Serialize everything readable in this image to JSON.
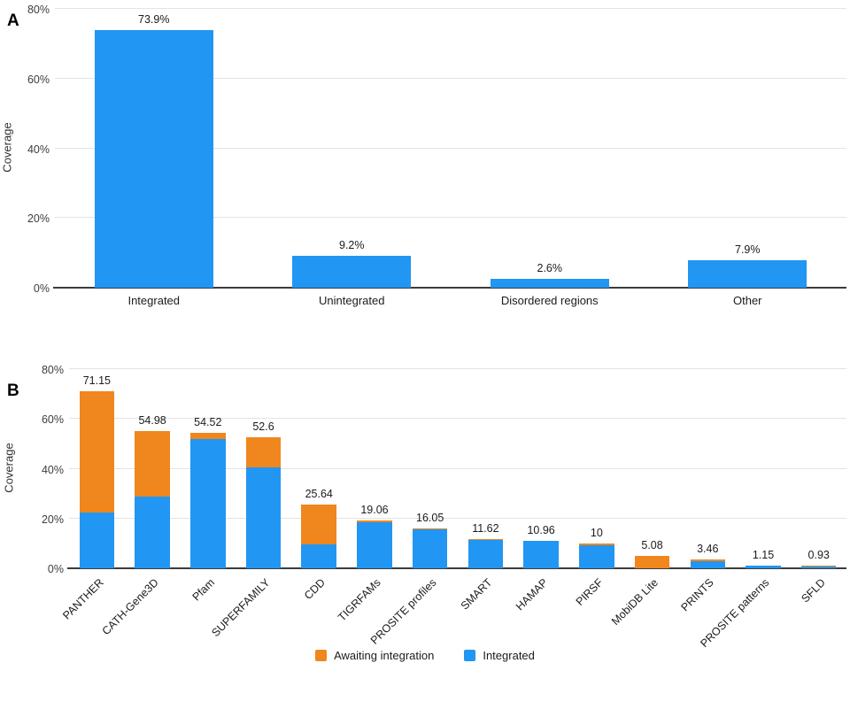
{
  "panel_a": {
    "letter": "A"
  },
  "panel_b": {
    "letter": "B"
  },
  "chart_data": [
    {
      "type": "bar",
      "panel": "A",
      "ylabel": "Coverage",
      "ylim": [
        0,
        80
      ],
      "yticks": [
        "0%",
        "20%",
        "40%",
        "60%",
        "80%"
      ],
      "grid": true,
      "bar_color": "#2196F3",
      "categories": [
        "Integrated",
        "Unintegrated",
        "Disordered regions",
        "Other"
      ],
      "values": [
        73.9,
        9.2,
        2.6,
        7.9
      ],
      "value_labels": [
        "73.9%",
        "9.2%",
        "2.6%",
        "7.9%"
      ]
    },
    {
      "type": "bar",
      "panel": "B",
      "stacked": true,
      "ylabel": "Coverage",
      "ylim": [
        0,
        80
      ],
      "yticks": [
        "0%",
        "20%",
        "40%",
        "60%",
        "80%"
      ],
      "grid": true,
      "legend_position": "bottom",
      "categories": [
        "PANTHER",
        "CATH-Gene3D",
        "Pfam",
        "SUPERFAMILY",
        "CDD",
        "TIGRFAMs",
        "PROSITE profiles",
        "SMART",
        "HAMAP",
        "PIRSF",
        "MobiDB Lite",
        "PRINTS",
        "PROSITE patterns",
        "SFLD"
      ],
      "series": [
        {
          "name": "Awaiting integration",
          "color": "#F0861E",
          "values": [
            48.85,
            26.28,
            2.62,
            11.9,
            16.14,
            0.66,
            0.45,
            0.37,
            0,
            0.7,
            5.08,
            0.66,
            0,
            0.38
          ]
        },
        {
          "name": "Integrated",
          "color": "#2196F3",
          "values": [
            22.3,
            28.7,
            51.9,
            40.7,
            9.5,
            18.4,
            15.6,
            11.25,
            10.96,
            9.3,
            0,
            2.8,
            1.15,
            0.55
          ]
        }
      ],
      "totals": [
        71.15,
        54.98,
        54.52,
        52.6,
        25.64,
        19.06,
        16.05,
        11.62,
        10.96,
        10,
        5.08,
        3.46,
        1.15,
        0.93
      ],
      "total_labels": [
        "71.15",
        "54.98",
        "54.52",
        "52.6",
        "25.64",
        "19.06",
        "16.05",
        "11.62",
        "10.96",
        "10",
        "5.08",
        "3.46",
        "1.15",
        "0.93"
      ]
    }
  ],
  "legend": {
    "items": [
      {
        "label": "Awaiting integration",
        "color": "#F0861E"
      },
      {
        "label": "Integrated",
        "color": "#2196F3"
      }
    ]
  },
  "colors": {
    "integrated_blue": "#2196F3",
    "awaiting_orange": "#F0861E",
    "gridline": "#e3e3e3",
    "axis": "#3c3c3c"
  }
}
